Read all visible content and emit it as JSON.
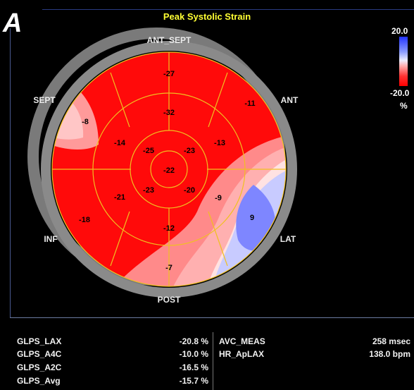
{
  "panel_letter": "A",
  "title": "Peak Systolic Strain",
  "color_scale": {
    "max_label": "20.0",
    "min_label": "-20.0",
    "unit": "%",
    "colors": {
      "positive": "#2233ff",
      "zero": "#ffffff",
      "negative": "#ff0000"
    }
  },
  "wall_labels": {
    "ant_sept": "ANT_SEPT",
    "ant": "ANT",
    "sept": "SEPT",
    "lat": "LAT",
    "inf": "INF",
    "post": "POST"
  },
  "segments": {
    "basal": [
      "-27",
      "-11",
      "9",
      "-7",
      "-18",
      "-8"
    ],
    "mid": [
      "-32",
      "-13",
      "-9",
      "-12",
      "-21",
      "-14"
    ],
    "apical": [
      "-23",
      "-20",
      "-23",
      "-25"
    ],
    "apex": "-22"
  },
  "stats_left": [
    {
      "name": "GLPS_LAX",
      "value": "-20.8 %"
    },
    {
      "name": "GLPS_A4C",
      "value": "-10.0 %"
    },
    {
      "name": "GLPS_A2C",
      "value": "-16.5 %"
    },
    {
      "name": "GLPS_Avg",
      "value": "-15.7 %"
    }
  ],
  "stats_right": [
    {
      "name": "AVC_MEAS",
      "value": "258 msec"
    },
    {
      "name": "HR_ApLAX",
      "value": "138.0 bpm"
    }
  ]
}
